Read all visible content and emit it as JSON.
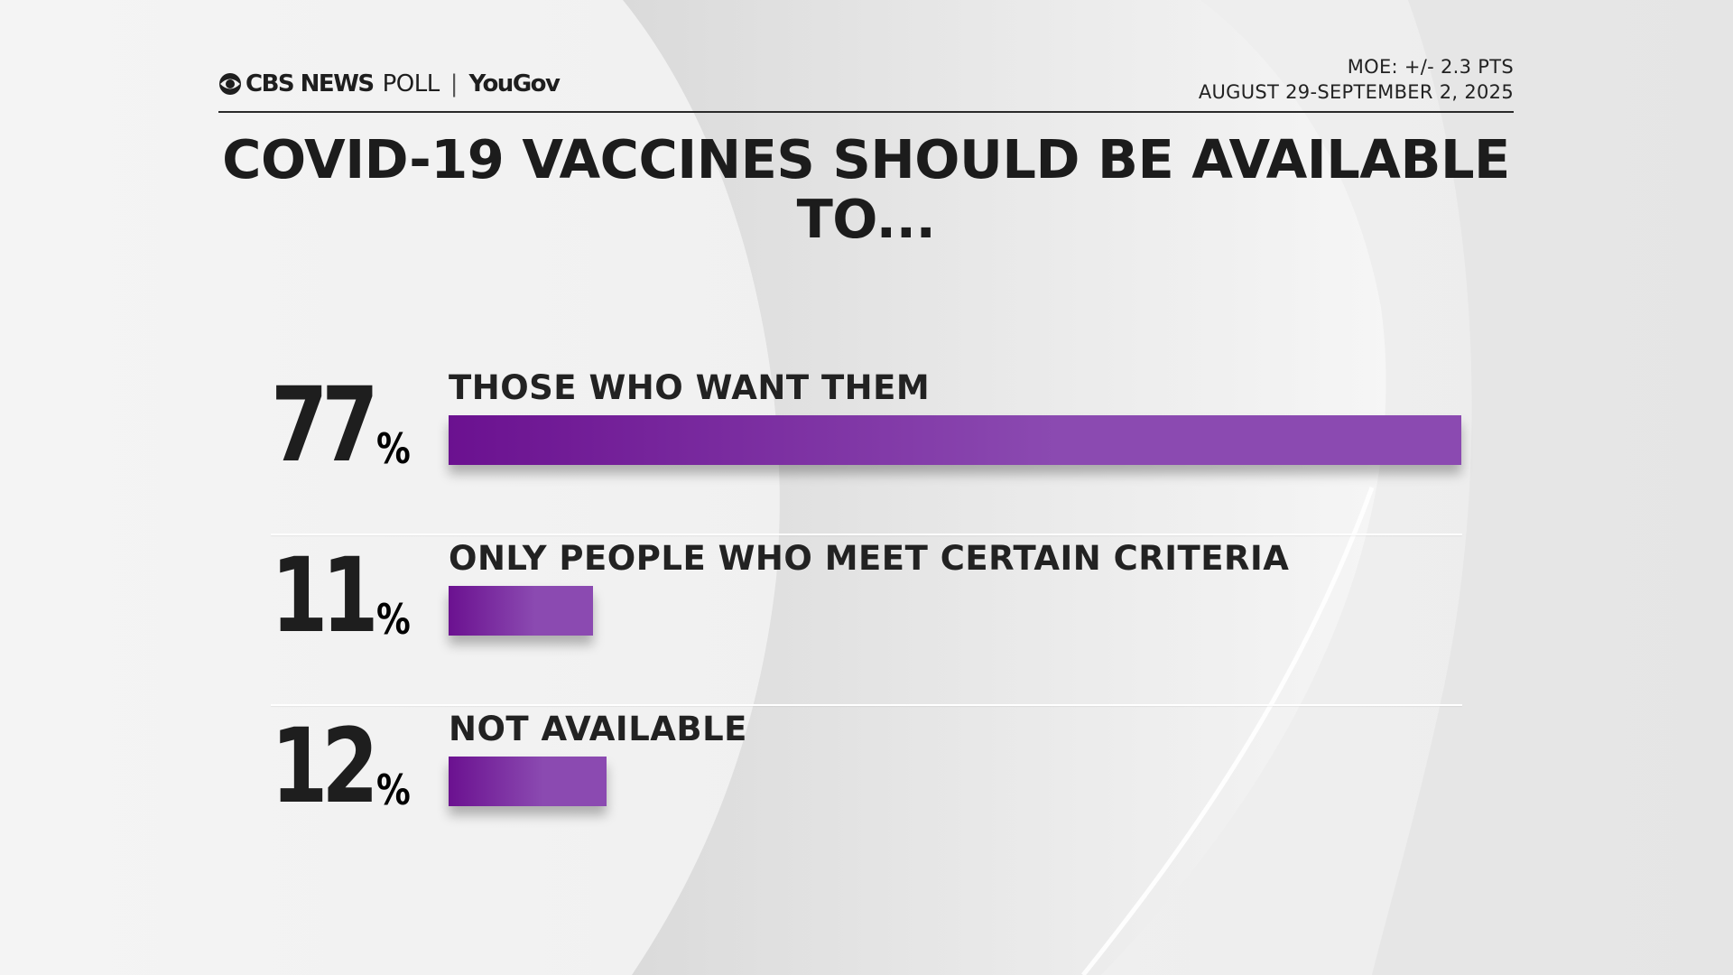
{
  "header": {
    "brand_cbs": "CBS NEWS",
    "brand_poll": "POLL",
    "brand_separator": "|",
    "brand_yougov": "YouGov",
    "moe": "MOE: +/- 2.3 PTS",
    "dates": "AUGUST 29-SEPTEMBER 2, 2025"
  },
  "chart_data": {
    "type": "bar",
    "orientation": "horizontal",
    "title": "COVID-19 VACCINES SHOULD BE AVAILABLE TO...",
    "categories": [
      "THOSE WHO WANT THEM",
      "ONLY PEOPLE WHO MEET CERTAIN CRITERIA",
      "NOT AVAILABLE"
    ],
    "values": [
      77,
      11,
      12
    ],
    "value_labels": [
      "77",
      "11",
      "12"
    ],
    "unit": "%",
    "xlim": [
      0,
      77
    ],
    "bar_color": "#8b4ab1",
    "bar_gradient_start": "#6b1190",
    "grid": false,
    "legend": "none"
  }
}
